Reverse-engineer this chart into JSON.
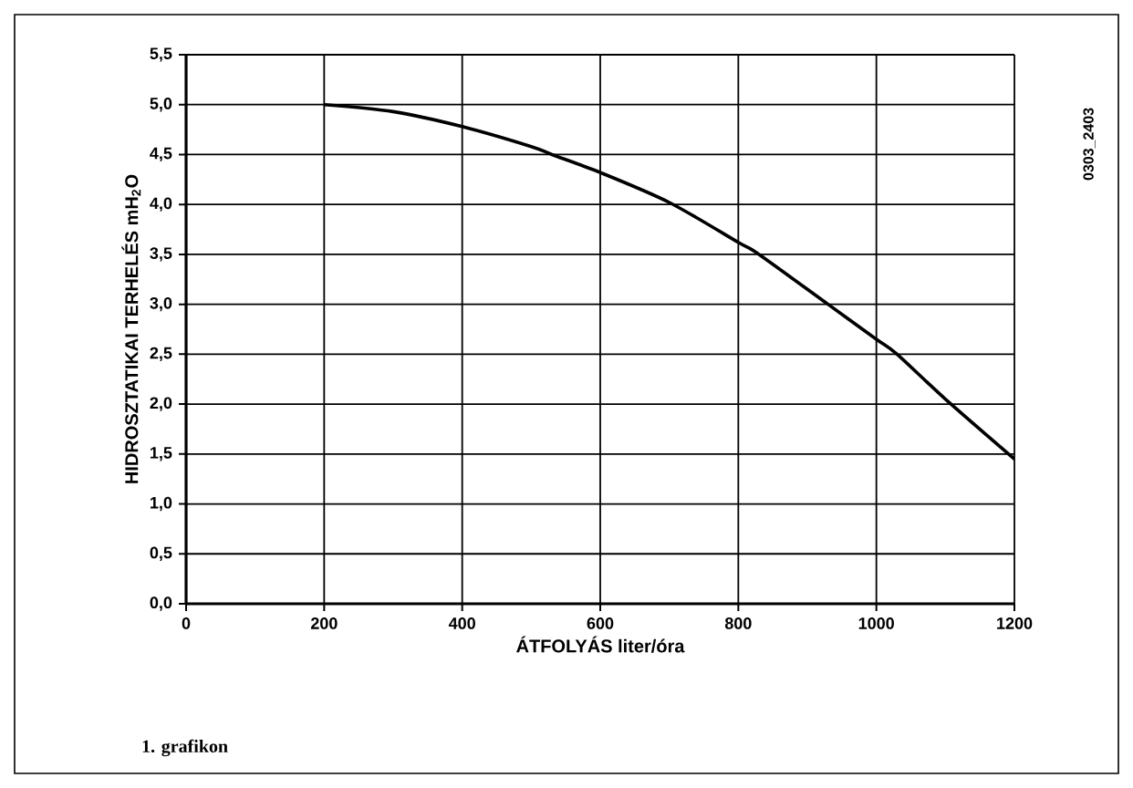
{
  "chart_data": {
    "type": "line",
    "xlabel": "ÁTFOLYÁS liter/óra",
    "ylabel": "HIDROSZTATIKAI TERHELÉS mH$_{2}$O",
    "annotations": [
      "0303_2403",
      "1. grafikon"
    ],
    "x": [
      200,
      300,
      400,
      500,
      530,
      600,
      700,
      800,
      830,
      930,
      1000,
      1030,
      1100,
      1200
    ],
    "series": [
      {
        "color": "#000000",
        "values": [
          5.0,
          4.93,
          4.78,
          4.58,
          4.5,
          4.32,
          4.02,
          3.62,
          3.5,
          3.0,
          2.65,
          2.5,
          2.05,
          1.45
        ]
      }
    ],
    "xlim": [
      0,
      1200
    ],
    "ylim": [
      0,
      5.5
    ],
    "xticks": [
      0,
      200,
      400,
      600,
      800,
      1000,
      1200
    ],
    "yticks": [
      {
        "value": 0,
        "label": "0,0"
      },
      {
        "value": 0.5,
        "label": "0,5"
      },
      {
        "value": 1,
        "label": "1,0"
      },
      {
        "value": 1.5,
        "label": "1,5"
      },
      {
        "value": 2,
        "label": "2,0"
      },
      {
        "value": 2.5,
        "label": "2,5"
      },
      {
        "value": 3,
        "label": "3,0"
      },
      {
        "value": 3.5,
        "label": "3,5"
      },
      {
        "value": 4,
        "label": "4,0"
      },
      {
        "value": 4.5,
        "label": "4,5"
      },
      {
        "value": 5,
        "label": "5,0"
      },
      {
        "value": 5.5,
        "label": "5,5"
      }
    ],
    "grid": true,
    "marker": "none",
    "line_style": "solid"
  }
}
